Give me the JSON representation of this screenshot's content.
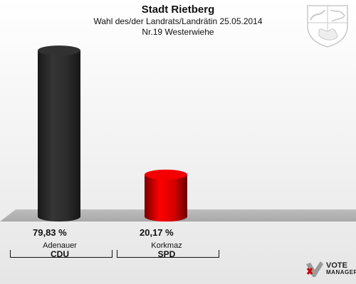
{
  "title": "Stadt Rietberg",
  "subtitle": "Wahl des/der Landrats/Landrätin 25.05.2014",
  "subtitle2": "Nr.19 Westerwiehe",
  "chart_data": {
    "type": "bar",
    "categories": [
      "Adenauer",
      "Korkmaz"
    ],
    "parties": [
      "CDU",
      "SPD"
    ],
    "values": [
      79.83,
      20.17
    ],
    "value_labels": [
      "79,83 %",
      "20,17 %"
    ],
    "colors": [
      "#2b2b2b",
      "#d40000"
    ],
    "ylim": [
      0,
      100
    ],
    "grid": false
  },
  "branding": {
    "crest_icon": "nrw-coat-of-arms",
    "logo_word1": "VOTE",
    "logo_word2": "MANAGER",
    "logo_icon": "vote-manager-logo"
  }
}
